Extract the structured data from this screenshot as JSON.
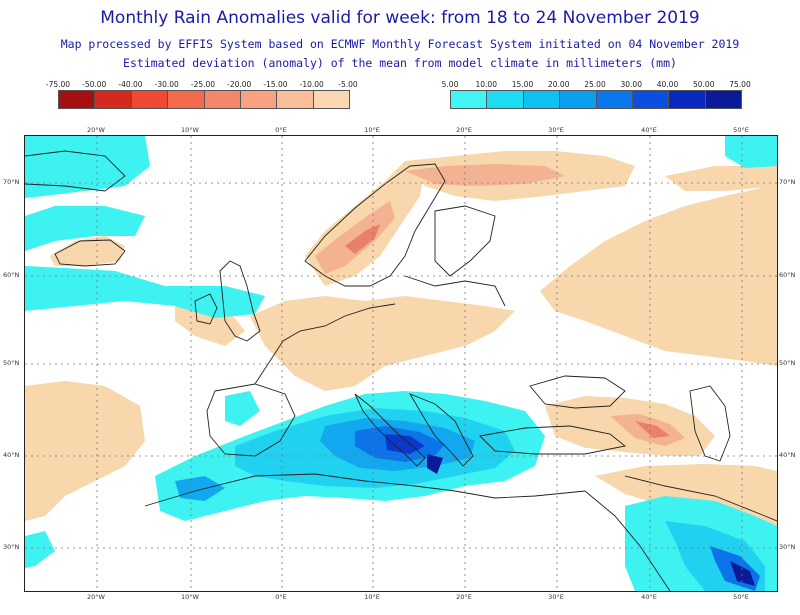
{
  "header": {
    "title": "Monthly Rain Anomalies valid for week: from 18 to 24 November 2019",
    "subtitle1": "Map processed by EFFIS System based on ECMWF Monthly Forecast System initiated on 04 November 2019",
    "subtitle2": "Estimated deviation (anomaly) of the mean from model climate in millimeters (mm)"
  },
  "legend_negative": {
    "ticks": [
      "-75.00",
      "-50.00",
      "-40.00",
      "-30.00",
      "-25.00",
      "-20.00",
      "-15.00",
      "-10.00",
      "-5.00"
    ],
    "colors": [
      "#a50f0f",
      "#d42a1e",
      "#ee4a36",
      "#f46a4f",
      "#f6866b",
      "#f8a283",
      "#f9bd99",
      "#fbd7b3"
    ]
  },
  "legend_positive": {
    "ticks": [
      "5.00",
      "10.00",
      "15.00",
      "20.00",
      "25.00",
      "30.00",
      "40.00",
      "50.00",
      "75.00"
    ],
    "colors": [
      "#40f5f2",
      "#1cdcf4",
      "#10c0f0",
      "#0a9ff0",
      "#0a78ec",
      "#0a4fe0",
      "#0828c0",
      "#0a1a98"
    ]
  },
  "map": {
    "lon_labels": [
      "20°W",
      "10°W",
      "0°E",
      "10°E",
      "20°E",
      "30°E",
      "40°E",
      "50°E"
    ],
    "lat_labels": [
      "70°N",
      "60°N",
      "50°N",
      "40°N",
      "30°N"
    ],
    "colors": {
      "dry": "#f7d7ab",
      "dry_mid": "#f3b392",
      "dry_strong": "#e9806a",
      "wet1": "#3ff2f2",
      "wet2": "#20d2f0",
      "wet3": "#12a8f0",
      "wet4": "#0c74e8",
      "wet5": "#0a38c8",
      "wet6": "#0a1a98",
      "coast": "#222222",
      "grid": "#777777"
    }
  }
}
